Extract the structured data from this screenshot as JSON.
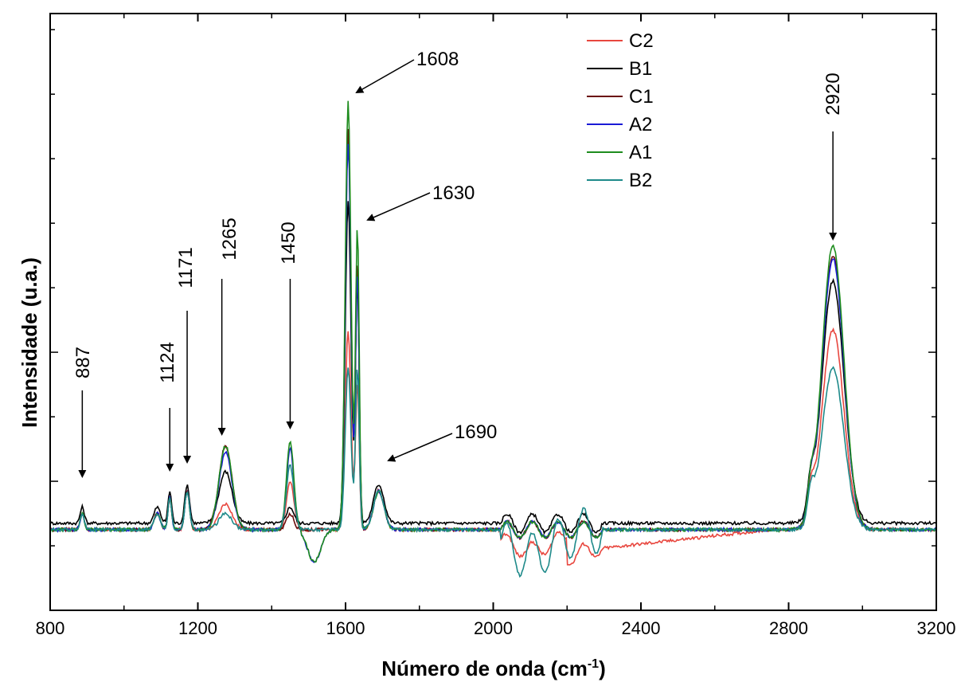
{
  "chart_data": {
    "type": "line",
    "title": "",
    "xlabel_main": "Número de onda (cm",
    "xlabel_sup": "-1",
    "xlabel_close": ")",
    "ylabel": "Intensidade (u.a.)",
    "xlim": [
      800,
      3200
    ],
    "ylim": [
      -0.25,
      1.6
    ],
    "x_ticks": [
      800,
      1200,
      1600,
      2000,
      2400,
      2800,
      3200
    ],
    "x_tick_labels": [
      "800",
      "1200",
      "1600",
      "2000",
      "2400",
      "2800",
      "3200"
    ],
    "y_tick_labels_shown": false,
    "legend_position": "top-right",
    "series": [
      {
        "name": "C2",
        "color": "#e8473f",
        "scale": 0.55,
        "noise": 0.35,
        "offset": 0.0,
        "negdip": 0.8,
        "dipstyle": "red"
      },
      {
        "name": "B1",
        "color": "#000000",
        "scale": 0.75,
        "noise": 0.4,
        "offset": 0.02,
        "negdip": 0.1,
        "dipstyle": "black"
      },
      {
        "name": "C1",
        "color": "#6b0b0b",
        "scale": 0.95,
        "noise": 0.35,
        "offset": 0.0,
        "negdip": 0.2,
        "dipstyle": "dark"
      },
      {
        "name": "A2",
        "color": "#1a1ad6",
        "scale": 0.9,
        "noise": 0.35,
        "offset": 0.0,
        "negdip": 0.2,
        "dipstyle": "blue"
      },
      {
        "name": "A1",
        "color": "#1e8c1e",
        "scale": 1.0,
        "noise": 0.35,
        "offset": 0.0,
        "negdip": 0.2,
        "dipstyle": "green"
      },
      {
        "name": "B2",
        "color": "#1e8a8a",
        "scale": 0.5,
        "noise": 1.0,
        "offset": 0.0,
        "negdip": 1.0,
        "dipstyle": "teal"
      }
    ],
    "peaks": [
      {
        "x": 887,
        "label": "887"
      },
      {
        "x": 1124,
        "label": "1124"
      },
      {
        "x": 1171,
        "label": "1171"
      },
      {
        "x": 1265,
        "label": "1265"
      },
      {
        "x": 1450,
        "label": "1450"
      },
      {
        "x": 1608,
        "label": "1608"
      },
      {
        "x": 1630,
        "label": "1630"
      },
      {
        "x": 1690,
        "label": "1690"
      },
      {
        "x": 2920,
        "label": "2920"
      }
    ]
  }
}
